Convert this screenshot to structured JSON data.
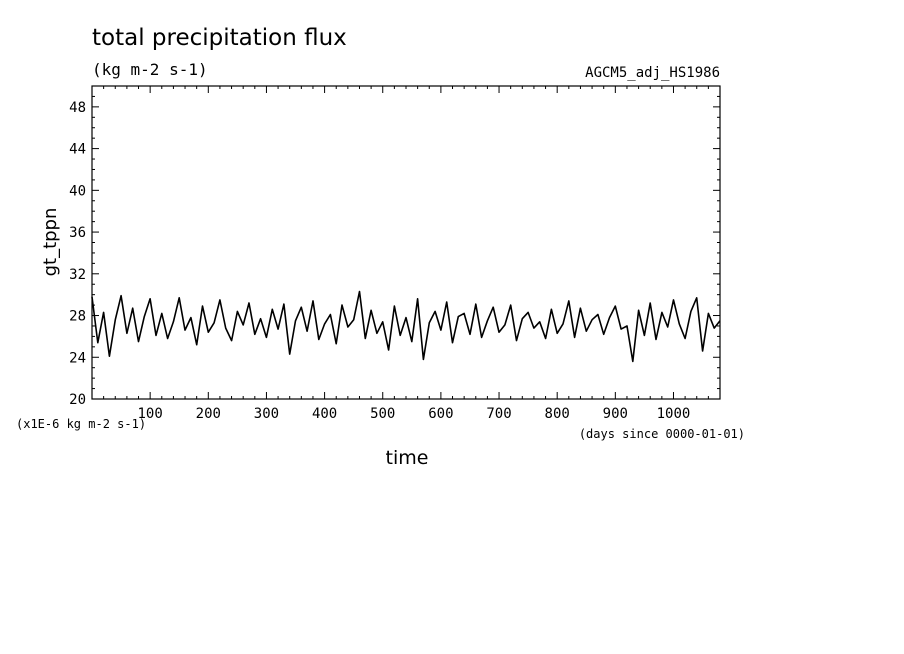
{
  "chart_data": {
    "type": "line",
    "title": "total precipitation flux",
    "subtitle": "(kg m-2 s-1)",
    "run_label": "AGCM5_adj_HS1986",
    "xlabel": "time",
    "xunit": "(days since 0000-01-01)",
    "ylabel": "gt_tppn",
    "yunit": "(x1E-6 kg m-2 s-1)",
    "xlim": [
      0,
      1080
    ],
    "ylim": [
      20,
      50
    ],
    "x_ticks": [
      100,
      200,
      300,
      400,
      500,
      600,
      700,
      800,
      900,
      1000
    ],
    "y_ticks": [
      20,
      24,
      28,
      32,
      36,
      40,
      44,
      48
    ],
    "grid": false,
    "series": [
      {
        "x": [
          0,
          10,
          20,
          30,
          40,
          50,
          60,
          70,
          80,
          90,
          100,
          110,
          120,
          130,
          140,
          150,
          160,
          170,
          180,
          190,
          200,
          210,
          220,
          230,
          240,
          250,
          260,
          270,
          280,
          290,
          300,
          310,
          320,
          330,
          340,
          350,
          360,
          370,
          380,
          390,
          400,
          410,
          420,
          430,
          440,
          450,
          460,
          470,
          480,
          490,
          500,
          510,
          520,
          530,
          540,
          550,
          560,
          570,
          580,
          590,
          600,
          610,
          620,
          630,
          640,
          650,
          660,
          670,
          680,
          690,
          700,
          710,
          720,
          730,
          740,
          750,
          760,
          770,
          780,
          790,
          800,
          810,
          820,
          830,
          840,
          850,
          860,
          870,
          880,
          890,
          900,
          910,
          920,
          930,
          940,
          950,
          960,
          970,
          980,
          990,
          1000,
          1010,
          1020,
          1030,
          1040,
          1050,
          1060,
          1070,
          1080
        ],
        "values": [
          29.8,
          25.4,
          28.3,
          24.1,
          27.6,
          29.9,
          26.3,
          28.7,
          25.5,
          27.9,
          29.6,
          26.1,
          28.2,
          25.8,
          27.4,
          29.7,
          26.6,
          27.8,
          25.2,
          28.9,
          26.4,
          27.3,
          29.5,
          26.8,
          25.6,
          28.4,
          27.1,
          29.2,
          26.2,
          27.7,
          25.9,
          28.6,
          26.7,
          29.1,
          24.3,
          27.5,
          28.8,
          26.5,
          29.4,
          25.7,
          27.2,
          28.1,
          25.3,
          29.0,
          26.9,
          27.6,
          30.3,
          25.8,
          28.5,
          26.3,
          27.4,
          24.7,
          28.9,
          26.1,
          27.8,
          25.5,
          29.6,
          23.8,
          27.3,
          28.4,
          26.6,
          29.3,
          25.4,
          27.9,
          28.2,
          26.2,
          29.1,
          25.9,
          27.5,
          28.8,
          26.4,
          27.1,
          29.0,
          25.6,
          27.7,
          28.3,
          26.8,
          27.4,
          25.8,
          28.6,
          26.3,
          27.2,
          29.4,
          25.9,
          28.7,
          26.5,
          27.6,
          28.1,
          26.2,
          27.8,
          28.9,
          26.7,
          27.0,
          23.6,
          28.5,
          26.1,
          29.2,
          25.7,
          28.3,
          26.9,
          29.5,
          27.2,
          25.8,
          28.4,
          29.7,
          24.6,
          28.2,
          26.8,
          27.5
        ]
      }
    ]
  }
}
